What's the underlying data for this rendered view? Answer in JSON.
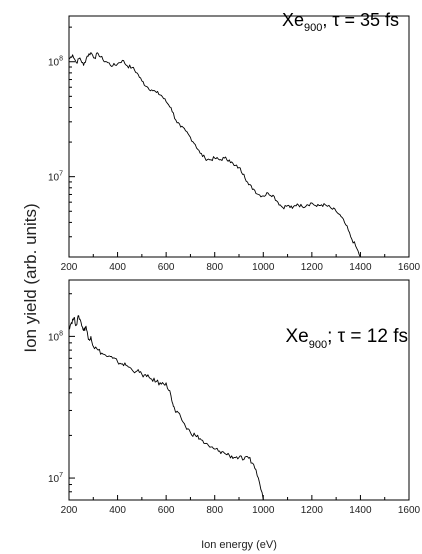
{
  "figure": {
    "ylabel": "Ion yield (arb. units)",
    "xlabel": "Ion energy (eV)"
  },
  "chart_data": [
    {
      "type": "line",
      "annotation": {
        "main": "Xe",
        "sub": "900",
        "rest": ", τ = 35 fs"
      },
      "xlabel": "Ion energy (eV)",
      "ylabel": "Ion yield (arb. units)",
      "xlim": [
        200,
        1600
      ],
      "ylim": [
        2000000,
        250000000
      ],
      "yscale": "log",
      "xticks": [
        200,
        400,
        600,
        800,
        1000,
        1200,
        1400,
        1600
      ],
      "ymajor_ticks": [
        {
          "value": 10000000,
          "label": "10",
          "exp": "7"
        },
        {
          "value": 100000000,
          "label": "10",
          "exp": "8"
        }
      ],
      "grid": false,
      "series": [
        {
          "x": [
            200,
            215,
            230,
            245,
            260,
            275,
            290,
            305,
            320,
            340,
            360,
            380,
            400,
            420,
            440,
            460,
            480,
            500,
            520,
            540,
            560,
            580,
            600,
            620,
            640,
            660,
            680,
            700,
            720,
            740,
            760,
            780,
            800,
            820,
            840,
            860,
            880,
            900,
            920,
            940,
            960,
            980,
            1000,
            1020,
            1040,
            1060,
            1080,
            1100,
            1120,
            1140,
            1160,
            1180,
            1200,
            1220,
            1240,
            1260,
            1280,
            1300,
            1320,
            1340,
            1360,
            1380,
            1400
          ],
          "y": [
            105000000,
            115000000,
            98000000,
            108000000,
            93000000,
            112000000,
            120000000,
            108000000,
            118000000,
            104000000,
            98000000,
            92000000,
            96000000,
            103000000,
            92000000,
            89000000,
            80000000,
            68000000,
            61000000,
            57000000,
            54000000,
            51000000,
            45000000,
            40000000,
            31000000,
            27000000,
            25000000,
            22000000,
            19000000,
            16000000,
            14500000,
            14000000,
            14500000,
            14000000,
            14500000,
            14000000,
            12500000,
            12000000,
            10500000,
            8500000,
            7800000,
            7000000,
            6800000,
            7200000,
            6900000,
            6000000,
            5400000,
            5600000,
            5300000,
            5800000,
            5500000,
            5700000,
            5900000,
            5500000,
            5700000,
            5600000,
            5300000,
            5000000,
            4500000,
            3800000,
            3000000,
            2500000,
            2000000
          ]
        }
      ]
    },
    {
      "type": "line",
      "annotation": {
        "main": "Xe",
        "sub": "900",
        "rest": "; τ = 12 fs"
      },
      "xlabel": "Ion energy (eV)",
      "ylabel": "Ion yield (arb. units)",
      "xlim": [
        200,
        1600
      ],
      "ylim": [
        7000000,
        250000000
      ],
      "yscale": "log",
      "xticks": [
        200,
        400,
        600,
        800,
        1000,
        1200,
        1400,
        1600
      ],
      "ymajor_ticks": [
        {
          "value": 10000000,
          "label": "10",
          "exp": "7"
        },
        {
          "value": 100000000,
          "label": "10",
          "exp": "8"
        }
      ],
      "grid": false,
      "series": [
        {
          "x": [
            200,
            210,
            220,
            230,
            240,
            250,
            260,
            270,
            280,
            290,
            300,
            320,
            340,
            360,
            380,
            400,
            420,
            440,
            460,
            480,
            500,
            520,
            540,
            560,
            580,
            600,
            620,
            630,
            640,
            660,
            680,
            700,
            720,
            740,
            760,
            780,
            800,
            820,
            840,
            860,
            880,
            900,
            920,
            940,
            960,
            980,
            1000
          ],
          "y": [
            115000000,
            125000000,
            135000000,
            120000000,
            140000000,
            125000000,
            110000000,
            118000000,
            95000000,
            100000000,
            85000000,
            80000000,
            75000000,
            72000000,
            70000000,
            66000000,
            64000000,
            62000000,
            58000000,
            57000000,
            54000000,
            52000000,
            50000000,
            48000000,
            46000000,
            47000000,
            38000000,
            32000000,
            29000000,
            27000000,
            23000000,
            21000000,
            20000000,
            19000000,
            17500000,
            16500000,
            16000000,
            15500000,
            15000000,
            14500000,
            14000000,
            14000000,
            13500000,
            13800000,
            12500000,
            10000000,
            7000000
          ]
        }
      ]
    }
  ]
}
